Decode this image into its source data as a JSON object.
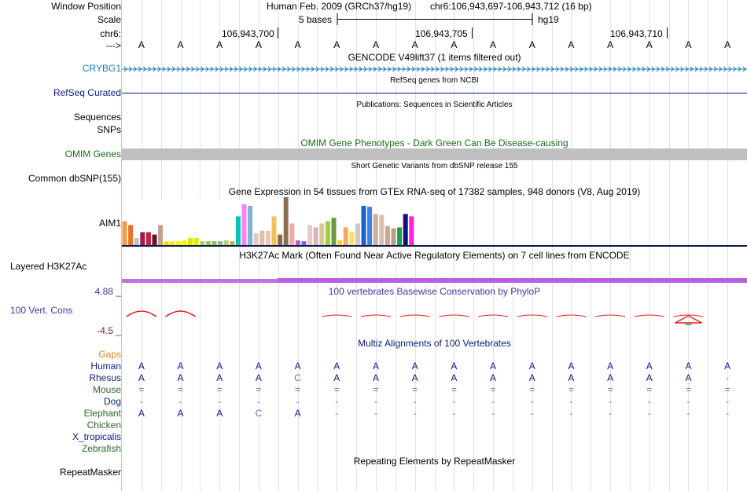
{
  "labels": {
    "window_position": "Window Position",
    "scale": "Scale",
    "chrom": "chr6:",
    "strand": "--->",
    "crybg1": "CRYBG1",
    "refseq": "RefSeq Curated",
    "sequences": "Sequences",
    "snps": "SNPs",
    "omim": "OMIM Genes",
    "common_dbsnp": "Common dbSNP(155)",
    "aim1": "AIM1",
    "h3k27ac": "Layered H3K27Ac",
    "phylop_max": "4.88 _",
    "vert_cons": "100 Vert. Cons",
    "phylop_min": "-4.5 _",
    "gaps": "Gaps",
    "repeatmasker": "RepeatMasker"
  },
  "header": {
    "assembly": "Human Feb. 2009 (GRCh37/hg19)",
    "position": "chr6:106,943,697-106,943,712 (16 bp)",
    "scale_text": "5 bases",
    "scale_db": "hg19",
    "coord_1": "106,943,700",
    "coord_2": "106,943,705",
    "coord_3": "106,943,710"
  },
  "track_titles": {
    "gencode": "GENCODE V49lift37 (1 items filtered out)",
    "refseq": "RefSeq genes from NCBI",
    "publications": "Publications: Sequences in Scientific Articles",
    "omim": "OMIM Gene Phenotypes - Dark Green Can Be Disease-causing",
    "dbsnp": "Short Genetic Variants from dbSNP release 155",
    "gtex": "Gene Expression in 54 tissues from GTEx RNA-seq of 17382 samples, 948 donors (V8, Aug 2019)",
    "h3k27ac": "H3K27Ac Mark (Often Found Near Active Regulatory Elements) on 7 cell lines from ENCODE",
    "phylop": "100 vertebrates Basewise Conservation by PhyloP",
    "multiz": "Multiz Alignments of 100 Vertebrates",
    "repeatmasker": "Repeating Elements by RepeatMasker"
  },
  "sequence": [
    "A",
    "A",
    "A",
    "A",
    "A",
    "A",
    "A",
    "A",
    "A",
    "A",
    "A",
    "A",
    "A",
    "A",
    "A",
    "A"
  ],
  "alignments": [
    {
      "species": "Human",
      "color": "#0b1b7a",
      "bases": [
        "A",
        "A",
        "A",
        "A",
        "A",
        "A",
        "A",
        "A",
        "A",
        "A",
        "A",
        "A",
        "A",
        "A",
        "A",
        "A"
      ]
    },
    {
      "species": "Rhesus",
      "color": "#0b1b7a",
      "bases": [
        "A",
        "A",
        "A",
        "A",
        "C",
        "A",
        "A",
        "A",
        "A",
        "A",
        "A",
        "A",
        "A",
        "A",
        "A",
        "-"
      ]
    },
    {
      "species": "Mouse",
      "color": "#2a6a2a",
      "bases": [
        "=",
        "=",
        "=",
        "=",
        "=",
        "=",
        "=",
        "=",
        "=",
        "=",
        "=",
        "=",
        "=",
        "=",
        "=",
        "="
      ]
    },
    {
      "species": "Dog",
      "color": "#0b1b7a",
      "bases": [
        "-",
        "-",
        "-",
        "-",
        "-",
        "-",
        "-",
        "-",
        "-",
        "-",
        "-",
        "-",
        "-",
        "-",
        "-",
        "-"
      ]
    },
    {
      "species": "Elephant",
      "color": "#2a6a2a",
      "bases": [
        "A",
        "A",
        "A",
        "C",
        "A",
        "-",
        "-",
        "-",
        "-",
        "-",
        "-",
        "-",
        "-",
        "-",
        "-",
        "-"
      ]
    },
    {
      "species": "Chicken",
      "color": "#2a6a2a",
      "bases": []
    },
    {
      "species": "X_tropicalis",
      "color": "#0b1b7a",
      "bases": []
    },
    {
      "species": "Zebrafish",
      "color": "#2a6a2a",
      "bases": []
    }
  ],
  "gtex_values": [
    0.5,
    0.42,
    0.15,
    0.27,
    0.27,
    0.22,
    0.42,
    0.08,
    0.08,
    0.08,
    0.1,
    0.15,
    0.15,
    0.08,
    0.08,
    0.08,
    0.08,
    0.1,
    0.08,
    0.6,
    0.85,
    0.82,
    0.25,
    0.3,
    0.3,
    0.6,
    0.22,
    1.0,
    0.45,
    0.1,
    0.08,
    0.42,
    0.37,
    0.45,
    0.5,
    0.57,
    0.1,
    0.37,
    0.28,
    0.45,
    0.82,
    0.8,
    0.65,
    0.63,
    0.4,
    0.35,
    0.37,
    0.65,
    0.6
  ],
  "gtex_colors": [
    "#f29e4c",
    "#e8742a",
    "#c2c2c2",
    "#9e1a4a",
    "#c81f3b",
    "#5b1a2a",
    "#c2a08c",
    "#ffd700",
    "#ffe033",
    "#ffee00",
    "#fff200",
    "#d0f000",
    "#e8e800",
    "#a8d060",
    "#a0c060",
    "#90c040",
    "#88c080",
    "#b0d080",
    "#c8b040",
    "#00c4b8",
    "#ff80ff",
    "#7fb5d0",
    "#e8c8c0",
    "#d4c0b0",
    "#e8c8b0",
    "#f0c060",
    "#8c6a48",
    "#8a7050",
    "#f4a8a8",
    "#c060c0",
    "#7a6ad0",
    "#e8c8c8",
    "#d4b8b8",
    "#d8c898",
    "#a0d040",
    "#709840",
    "#ffd700",
    "#f4a860",
    "#ffe060",
    "#c8c8c8",
    "#2060d0",
    "#4080e0",
    "#c8b0a0",
    "#d8c0b0",
    "#c8a890",
    "#b0a090",
    "#20a040",
    "#101080",
    "#ff20e0"
  ],
  "phylop_positions": [
    0,
    1,
    5,
    6,
    7,
    8,
    9,
    10,
    11,
    12,
    13,
    14
  ],
  "phylop_big": [
    1,
    1,
    0,
    0,
    0,
    0,
    0,
    0,
    0,
    0,
    0,
    0
  ]
}
